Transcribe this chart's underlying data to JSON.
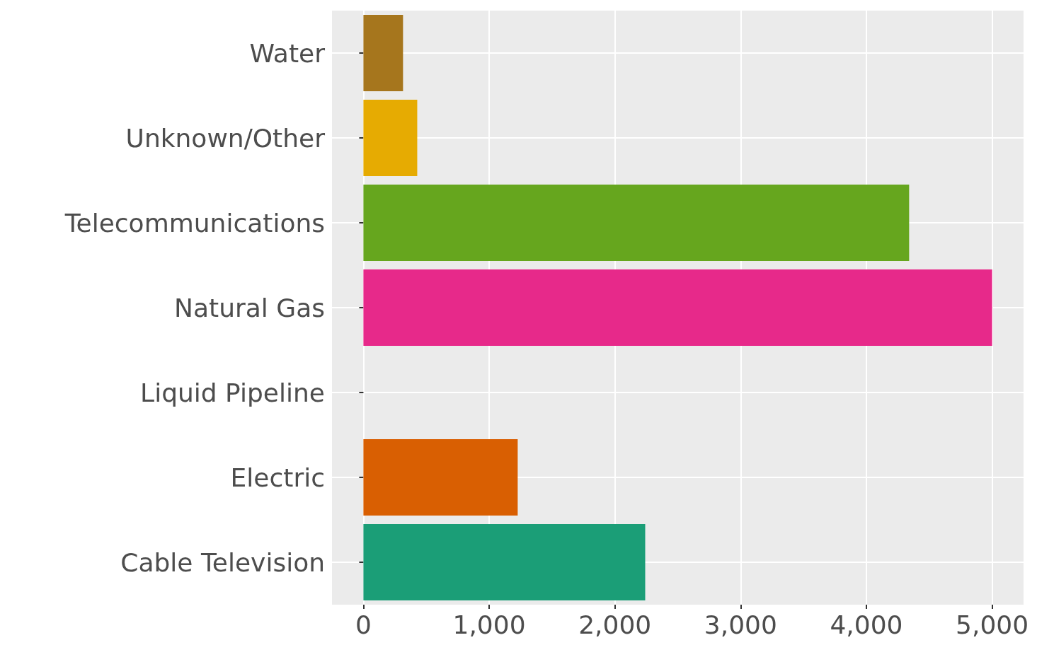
{
  "chart_data": {
    "type": "bar",
    "orientation": "horizontal",
    "categories": [
      "Water",
      "Unknown/Other",
      "Telecommunications",
      "Natural Gas",
      "Liquid Pipeline",
      "Electric",
      "Cable Television"
    ],
    "values": [
      315,
      428,
      4340,
      5000,
      0,
      1227,
      2241
    ],
    "colors": [
      "#a6761d",
      "#e6ab02",
      "#66a61e",
      "#e7298a",
      "#7570b3",
      "#d95f02",
      "#1b9e77"
    ],
    "xlim": [
      -250,
      5250
    ],
    "xticks": [
      0,
      {
        "value": 1000,
        "label": "1,000"
      },
      {
        "value": 2000,
        "label": "2,000"
      },
      {
        "value": 3000,
        "label": "3,000"
      },
      {
        "value": 4000,
        "label": "4,000"
      },
      {
        "value": 5000,
        "label": "5,000"
      }
    ],
    "grid": true
  }
}
